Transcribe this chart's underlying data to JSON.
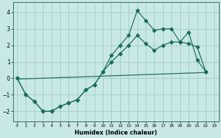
{
  "xlabel": "Humidex (Indice chaleur)",
  "bg_color": "#c8e8e8",
  "grid_color": "#a0c8c8",
  "line_color": "#1a6b5a",
  "xlim": [
    -0.5,
    23.5
  ],
  "ylim": [
    -2.6,
    4.6
  ],
  "xticks": [
    0,
    1,
    2,
    3,
    4,
    5,
    6,
    7,
    8,
    9,
    10,
    11,
    12,
    13,
    14,
    15,
    16,
    17,
    18,
    19,
    20,
    21,
    22,
    23
  ],
  "yticks": [
    -2,
    -1,
    0,
    1,
    2,
    3,
    4
  ],
  "line1_x": [
    0,
    1,
    2,
    3,
    4,
    5,
    6,
    7,
    8,
    9,
    10,
    11,
    12,
    13,
    14,
    15,
    16,
    17,
    18,
    19,
    20,
    21,
    22
  ],
  "line1_y": [
    0.0,
    -1.0,
    -1.4,
    -2.0,
    -2.0,
    -1.7,
    -1.5,
    -1.3,
    -0.7,
    -0.4,
    0.4,
    1.4,
    2.0,
    2.6,
    4.1,
    3.5,
    2.9,
    3.0,
    3.0,
    2.2,
    2.8,
    1.1,
    0.4
  ],
  "line2_x": [
    0,
    1,
    2,
    3,
    4,
    5,
    6,
    7,
    8,
    9,
    10,
    11,
    12,
    13,
    14,
    15,
    16,
    17,
    18,
    19,
    20,
    21,
    22
  ],
  "line2_y": [
    0.0,
    -1.0,
    -1.4,
    -2.0,
    -2.0,
    -1.7,
    -1.5,
    -1.3,
    -0.7,
    -0.4,
    0.4,
    1.0,
    1.5,
    2.0,
    2.6,
    2.1,
    1.7,
    2.0,
    2.2,
    2.2,
    2.1,
    1.9,
    0.4
  ],
  "line3_x": [
    0,
    22
  ],
  "line3_y": [
    -0.05,
    0.35
  ]
}
